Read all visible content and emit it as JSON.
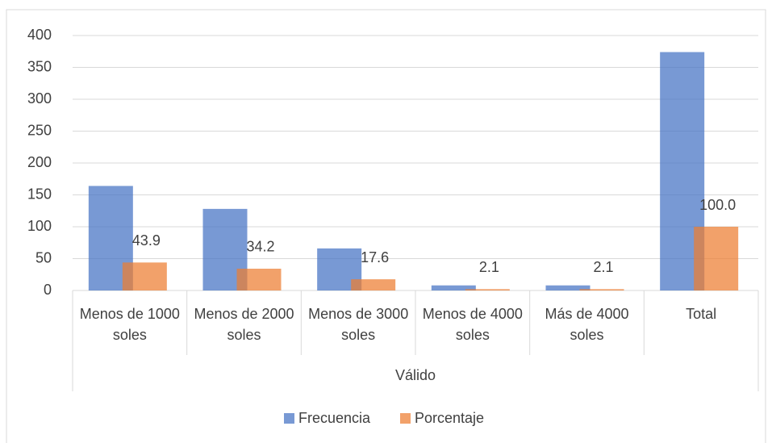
{
  "chart_data": {
    "type": "bar",
    "categories": [
      "Menos de 1000 soles",
      "Menos de 2000 soles",
      "Menos de 3000 soles",
      "Menos de 4000 soles",
      "Más de 4000 soles",
      "Total"
    ],
    "category_group": "Válido",
    "series": [
      {
        "name": "Frecuencia",
        "color": "#4472c4",
        "values": [
          164,
          128,
          66,
          8,
          8,
          374
        ]
      },
      {
        "name": "Porcentaje",
        "color": "#ed7d31",
        "values": [
          43.9,
          34.2,
          17.6,
          2.1,
          2.1,
          100
        ],
        "value_labels": [
          "43.9",
          "34.2",
          "17.6",
          "2.1",
          "2.1",
          "100.0"
        ]
      }
    ],
    "ylim": [
      0,
      400
    ],
    "yticks": [
      0,
      50,
      100,
      150,
      200,
      250,
      300,
      350,
      400
    ],
    "grid": true,
    "legend": "bottom"
  }
}
